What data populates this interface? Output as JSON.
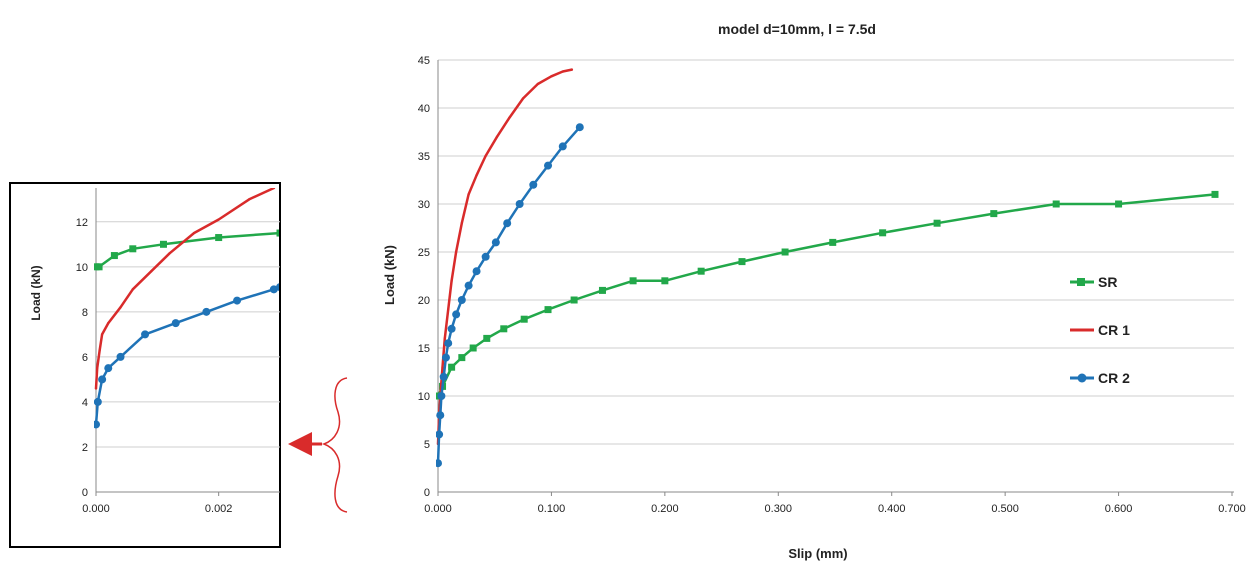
{
  "chart_data": [
    {
      "type": "line",
      "panel": "main",
      "title": "model d=10mm, l = 7.5d",
      "xlabel": "Slip (mm)",
      "ylabel": "Load (kN)",
      "xlim": [
        0,
        0.7
      ],
      "ylim": [
        0,
        45
      ],
      "xticks": [
        "0.000",
        "0.100",
        "0.200",
        "0.300",
        "0.400",
        "0.500",
        "0.600",
        "0.700"
      ],
      "yticks": [
        "0",
        "5",
        "10",
        "15",
        "20",
        "25",
        "30",
        "35",
        "40",
        "45"
      ],
      "grid": true,
      "legend_position": "right",
      "series": [
        {
          "name": "SR",
          "color": "#22a84a",
          "marker": "square",
          "x": [
            0.0,
            0.004,
            0.012,
            0.021,
            0.031,
            0.043,
            0.058,
            0.076,
            0.097,
            0.12,
            0.145,
            0.172,
            0.2,
            0.232,
            0.268,
            0.306,
            0.348,
            0.392,
            0.44,
            0.49,
            0.545,
            0.6,
            0.685
          ],
          "y": [
            10,
            11,
            13,
            14,
            15,
            16,
            17,
            18,
            19,
            20,
            21,
            22,
            22,
            23,
            24,
            25,
            26,
            27,
            28,
            29,
            30,
            30,
            31
          ]
        },
        {
          "name": "CR 1",
          "color": "#d92b2b",
          "marker": "none",
          "x": [
            0.0,
            0.001,
            0.002,
            0.004,
            0.006,
            0.009,
            0.012,
            0.016,
            0.021,
            0.027,
            0.034,
            0.042,
            0.052,
            0.063,
            0.075,
            0.088,
            0.1,
            0.11,
            0.118
          ],
          "y": [
            5,
            8,
            10,
            13,
            16,
            19,
            22,
            25,
            28,
            31,
            33,
            35,
            37,
            39,
            41,
            42.5,
            43.3,
            43.8,
            44
          ]
        },
        {
          "name": "CR 2",
          "color": "#1f73b7",
          "marker": "circle",
          "x": [
            0.0,
            0.001,
            0.002,
            0.003,
            0.005,
            0.007,
            0.009,
            0.012,
            0.016,
            0.021,
            0.027,
            0.034,
            0.042,
            0.051,
            0.061,
            0.072,
            0.084,
            0.097,
            0.11,
            0.125
          ],
          "y": [
            3,
            6,
            8,
            10,
            12,
            14,
            15.5,
            17,
            18.5,
            20,
            21.5,
            23,
            24.5,
            26,
            28,
            30,
            32,
            34,
            36,
            38
          ]
        }
      ]
    },
    {
      "type": "line",
      "panel": "inset",
      "title": "",
      "xlabel": "",
      "ylabel": "Load (kN)",
      "xlim": [
        0,
        0.003
      ],
      "ylim": [
        0,
        13.5
      ],
      "xticks": [
        "0.000",
        "0.002"
      ],
      "yticks": [
        "0",
        "2",
        "4",
        "6",
        "8",
        "10",
        "12"
      ],
      "grid": true,
      "series": [
        {
          "name": "SR",
          "color": "#22a84a",
          "marker": "square",
          "x": [
            0.0,
            5e-05,
            0.0003,
            0.0006,
            0.0011,
            0.002,
            0.003
          ],
          "y": [
            10,
            10,
            10.5,
            10.8,
            11,
            11.3,
            11.5
          ]
        },
        {
          "name": "CR 1",
          "color": "#d92b2b",
          "marker": "none",
          "x": [
            0.0,
            2e-05,
            6e-05,
            0.0001,
            0.0002,
            0.0004,
            0.0006,
            0.0009,
            0.0012,
            0.0016,
            0.002,
            0.0025,
            0.0029
          ],
          "y": [
            4.6,
            5.5,
            6.3,
            7,
            7.5,
            8.2,
            9,
            9.8,
            10.6,
            11.5,
            12.1,
            13,
            13.5
          ]
        },
        {
          "name": "CR 2",
          "color": "#1f73b7",
          "marker": "circle",
          "x": [
            0.0,
            3e-05,
            0.0001,
            0.0002,
            0.0004,
            0.0008,
            0.0013,
            0.0018,
            0.0023,
            0.0029,
            0.003
          ],
          "y": [
            3,
            4,
            5,
            5.5,
            6,
            7,
            7.5,
            8,
            8.5,
            9,
            9.1
          ]
        }
      ]
    }
  ]
}
